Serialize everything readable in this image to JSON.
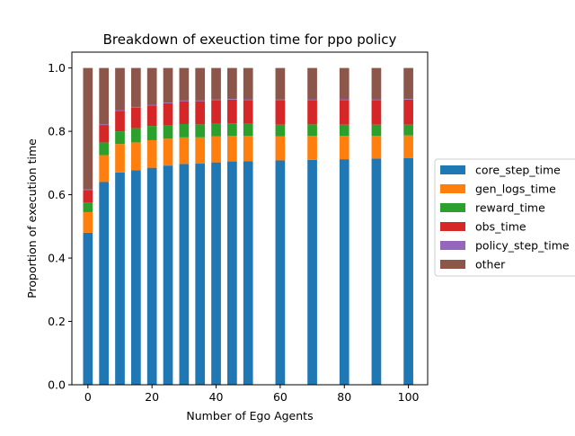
{
  "chart_data": {
    "type": "bar",
    "stacked": true,
    "title": "Breakdown of exeuction time for ppo policy",
    "xlabel": "Number of Ego Agents",
    "ylabel": "Proportion of execution time",
    "xlim": [
      -5,
      106
    ],
    "ylim": [
      0,
      1.05
    ],
    "bar_width": 3,
    "xticks": [
      0,
      20,
      40,
      60,
      80,
      100
    ],
    "yticks": [
      0.0,
      0.2,
      0.4,
      0.6,
      0.8,
      1.0
    ],
    "xtick_labels": [
      "0",
      "20",
      "40",
      "60",
      "80",
      "100"
    ],
    "ytick_labels": [
      "0.0",
      "0.2",
      "0.4",
      "0.6",
      "0.8",
      "1.0"
    ],
    "grid": false,
    "legend_position": "right, outside plot",
    "x": [
      0,
      5,
      10,
      15,
      20,
      25,
      30,
      35,
      40,
      45,
      50,
      60,
      70,
      80,
      90,
      100
    ],
    "series": [
      {
        "name": "core_step_time",
        "color": "#1f77b4",
        "values": [
          0.48,
          0.64,
          0.67,
          0.677,
          0.685,
          0.692,
          0.697,
          0.698,
          0.702,
          0.705,
          0.706,
          0.708,
          0.71,
          0.712,
          0.714,
          0.716
        ]
      },
      {
        "name": "gen_logs_time",
        "color": "#ff7f0e",
        "values": [
          0.065,
          0.085,
          0.09,
          0.088,
          0.087,
          0.085,
          0.084,
          0.083,
          0.082,
          0.081,
          0.08,
          0.076,
          0.076,
          0.074,
          0.072,
          0.071
        ]
      },
      {
        "name": "reward_time",
        "color": "#2ca02c",
        "values": [
          0.03,
          0.04,
          0.04,
          0.045,
          0.045,
          0.042,
          0.042,
          0.041,
          0.04,
          0.039,
          0.038,
          0.037,
          0.036,
          0.035,
          0.035,
          0.034
        ]
      },
      {
        "name": "obs_time",
        "color": "#d62728",
        "values": [
          0.04,
          0.055,
          0.065,
          0.065,
          0.065,
          0.07,
          0.072,
          0.073,
          0.074,
          0.075,
          0.075,
          0.077,
          0.077,
          0.078,
          0.078,
          0.079
        ]
      },
      {
        "name": "policy_step_time",
        "color": "#9467bd",
        "values": [
          0.002,
          0.002,
          0.002,
          0.002,
          0.002,
          0.002,
          0.002,
          0.002,
          0.002,
          0.002,
          0.002,
          0.002,
          0.002,
          0.002,
          0.002,
          0.002
        ]
      },
      {
        "name": "other",
        "color": "#8c564b",
        "values": [
          0.383,
          0.178,
          0.133,
          0.123,
          0.116,
          0.109,
          0.103,
          0.103,
          0.1,
          0.098,
          0.099,
          0.1,
          0.099,
          0.099,
          0.099,
          0.098
        ]
      }
    ]
  }
}
